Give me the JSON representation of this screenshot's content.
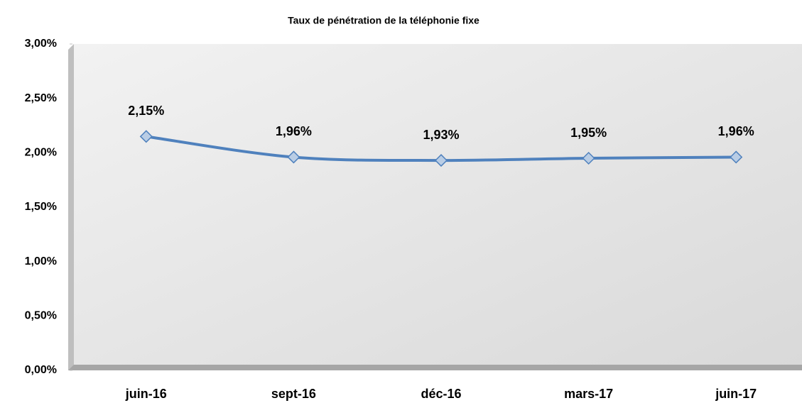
{
  "chart_data": {
    "type": "line",
    "title": "Taux de pénétration de la téléphonie fixe",
    "categories": [
      "juin-16",
      "sept-16",
      "déc-16",
      "mars-17",
      "juin-17"
    ],
    "series": [
      {
        "name": "Taux de pénétration",
        "color": "#4f81bd",
        "values": [
          2.15,
          1.96,
          1.93,
          1.95,
          1.96
        ],
        "value_labels": [
          "2,15%",
          "1,96%",
          "1,93%",
          "1,95%",
          "1,96%"
        ]
      }
    ],
    "ylim": [
      0,
      3
    ],
    "yticks": [
      {
        "value": 0,
        "label": "0,00%"
      },
      {
        "value": 0.5,
        "label": "0,50%"
      },
      {
        "value": 1,
        "label": "1,00%"
      },
      {
        "value": 1.5,
        "label": "1,50%"
      },
      {
        "value": 2,
        "label": "2,00%"
      },
      {
        "value": 2.5,
        "label": "2,50%"
      },
      {
        "value": 3,
        "label": "3,00%"
      }
    ],
    "smooth": true
  }
}
